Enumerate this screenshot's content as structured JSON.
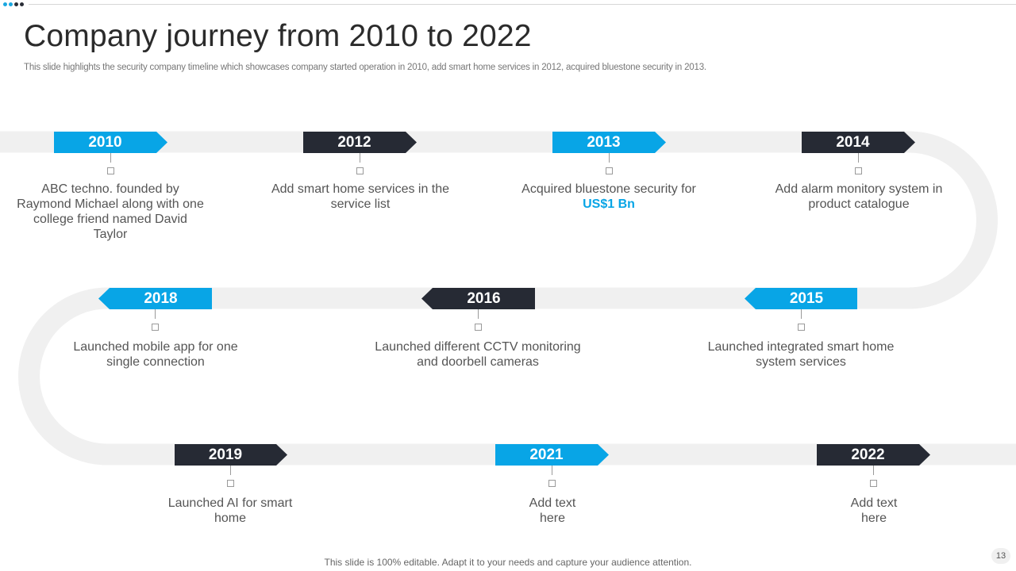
{
  "slide": {
    "title": "Company journey from 2010 to 2022",
    "subtitle": "This slide highlights the security company timeline which showcases company started operation in 2010, add smart home services in 2012, acquired bluestone security in 2013.",
    "footer": "This slide is 100% editable. Adapt it to your  needs and capture your audience attention.",
    "page_number": "13"
  },
  "colors": {
    "accent": "#08a5e6",
    "dark": "#262a34",
    "track": "#f0f0f0",
    "text": "#555555"
  },
  "milestones": [
    {
      "year": "2010",
      "text": "ABC techno. founded by Raymond Michael along with one college friend named David Taylor"
    },
    {
      "year": "2012",
      "text": "Add smart home services in the service list"
    },
    {
      "year": "2013",
      "text_before": "Acquired bluestone security for ",
      "highlight": "US$1 Bn"
    },
    {
      "year": "2014",
      "text": "Add alarm monitory system in product catalogue"
    },
    {
      "year": "2015",
      "text": "Launched integrated smart home system services"
    },
    {
      "year": "2016",
      "text": "Launched different CCTV monitoring and doorbell cameras"
    },
    {
      "year": "2018",
      "text": "Launched mobile app for one single connection"
    },
    {
      "year": "2019",
      "text": "Launched AI for smart home"
    },
    {
      "year": "2021",
      "text": "Add text here"
    },
    {
      "year": "2022",
      "text": "Add text here"
    }
  ]
}
